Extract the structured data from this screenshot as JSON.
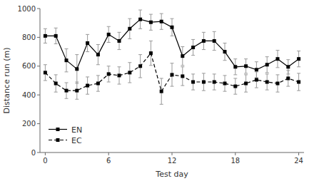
{
  "chart_data": {
    "type": "line",
    "x": [
      0,
      1,
      2,
      3,
      4,
      5,
      6,
      7,
      8,
      9,
      10,
      11,
      12,
      13,
      14,
      15,
      16,
      17,
      18,
      19,
      20,
      21,
      22,
      23,
      24
    ],
    "series": [
      {
        "name": "EN",
        "color": "black",
        "marker": "square",
        "line_style": "solid",
        "values": [
          810,
          810,
          640,
          580,
          760,
          680,
          820,
          775,
          860,
          925,
          905,
          910,
          870,
          670,
          730,
          775,
          775,
          700,
          595,
          600,
          575,
          610,
          650,
          595,
          650
        ],
        "errors": [
          50,
          55,
          80,
          100,
          60,
          70,
          55,
          60,
          70,
          65,
          55,
          55,
          60,
          65,
          55,
          60,
          65,
          60,
          55,
          50,
          55,
          55,
          60,
          50,
          55
        ]
      },
      {
        "name": "EC",
        "color": "black",
        "marker": "square",
        "line_style": "dashed",
        "values": [
          555,
          480,
          430,
          430,
          465,
          480,
          545,
          535,
          555,
          600,
          690,
          425,
          540,
          530,
          490,
          490,
          490,
          480,
          460,
          480,
          505,
          490,
          480,
          515,
          490
        ],
        "errors": [
          55,
          60,
          55,
          60,
          60,
          55,
          55,
          60,
          70,
          80,
          85,
          90,
          80,
          65,
          55,
          60,
          55,
          55,
          55,
          60,
          55,
          55,
          60,
          55,
          60
        ]
      }
    ],
    "xlabel": "Test day",
    "ylabel": "Distance run (m)",
    "xlim": [
      -0.5,
      24.5
    ],
    "ylim": [
      0,
      1000
    ],
    "xticks": [
      0,
      6,
      12,
      18,
      24
    ],
    "yticks": [
      0,
      200,
      400,
      600,
      800,
      1000
    ],
    "grid": false,
    "legend": "lower left"
  }
}
